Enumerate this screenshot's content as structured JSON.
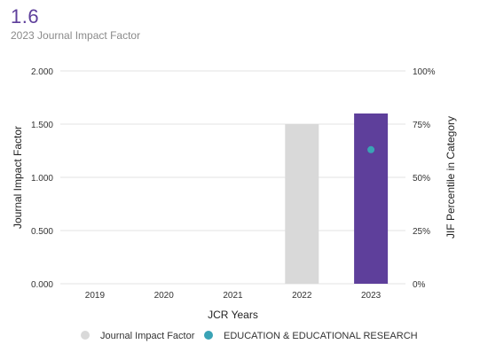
{
  "header": {
    "value": "1.6",
    "label": "2023 Journal Impact Factor"
  },
  "colors": {
    "accent": "#5e3f9b",
    "bar_2022": "#d9d9d9",
    "bar_2023": "#5e3f9b",
    "percentile_point": "#3aa3b5",
    "gridline": "#e3e3e3"
  },
  "chart_data": {
    "type": "bar",
    "xlabel": "JCR Years",
    "ylabel": "Journal Impact Factor",
    "ylabel_right": "JIF Percentile in Category",
    "categories": [
      "2019",
      "2020",
      "2021",
      "2022",
      "2023"
    ],
    "ylim": [
      0,
      2
    ],
    "ylim_right": [
      0,
      100
    ],
    "yticks": [
      "0.000",
      "0.500",
      "1.000",
      "1.500",
      "2.000"
    ],
    "yticks_right": [
      "0%",
      "25%",
      "50%",
      "75%",
      "100%"
    ],
    "grid": true,
    "series": [
      {
        "name": "Journal Impact Factor",
        "kind": "bar",
        "values": [
          null,
          null,
          null,
          1.5,
          1.6
        ],
        "colors": [
          "#d9d9d9",
          "#d9d9d9",
          "#d9d9d9",
          "#d9d9d9",
          "#5e3f9b"
        ]
      },
      {
        "name": "EDUCATION & EDUCATIONAL RESEARCH",
        "kind": "scatter",
        "axis": "right",
        "values": [
          null,
          null,
          null,
          null,
          63
        ],
        "color": "#3aa3b5"
      }
    ],
    "legend_position": "bottom",
    "legend": [
      {
        "label": "Journal Impact Factor",
        "color": "#d9d9d9"
      },
      {
        "label": "EDUCATION & EDUCATIONAL RESEARCH",
        "color": "#3aa3b5"
      }
    ]
  }
}
